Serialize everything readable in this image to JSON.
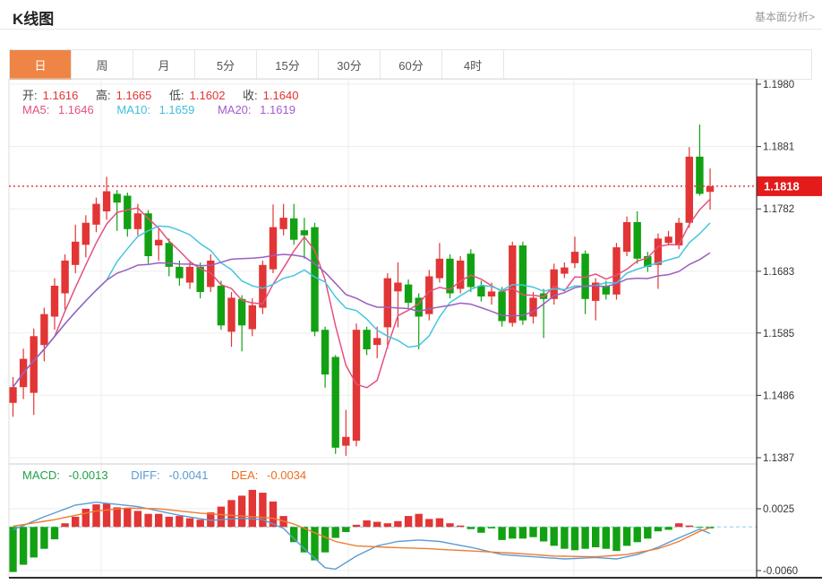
{
  "header": {
    "title": "K线图",
    "link": "基本面分析>"
  },
  "tabs": {
    "accent": "#ee8544",
    "items": [
      {
        "name": "tab-day",
        "label": "日",
        "active": true
      },
      {
        "name": "tab-week",
        "label": "周",
        "active": false
      },
      {
        "name": "tab-month",
        "label": "月",
        "active": false
      },
      {
        "name": "tab-5min",
        "label": "5分",
        "active": false
      },
      {
        "name": "tab-15min",
        "label": "15分",
        "active": false
      },
      {
        "name": "tab-30min",
        "label": "30分",
        "active": false
      },
      {
        "name": "tab-60min",
        "label": "60分",
        "active": false
      },
      {
        "name": "tab-4hour",
        "label": "4时",
        "active": false
      }
    ]
  },
  "legend": {
    "ohlc_value_color": "#e33232",
    "ohlc": [
      {
        "label": "开:",
        "value": "1.1616"
      },
      {
        "label": "高:",
        "value": "1.1665"
      },
      {
        "label": "低:",
        "value": "1.1602"
      },
      {
        "label": "收:",
        "value": "1.1640"
      }
    ],
    "ma": [
      {
        "label": "MA5:",
        "value": "1.1646",
        "color": "#e4517e"
      },
      {
        "label": "MA10:",
        "value": "1.1659",
        "color": "#3ec0dd"
      },
      {
        "label": "MA20:",
        "value": "1.1619",
        "color": "#a35cd0"
      }
    ]
  },
  "macd_legend": [
    {
      "label": "MACD:",
      "value": "-0.0013",
      "color": "#21a148"
    },
    {
      "label": "DIFF:",
      "value": "-0.0041",
      "color": "#5b9bd5"
    },
    {
      "label": "DEA:",
      "value": "-0.0034",
      "color": "#ed6d1f"
    }
  ],
  "chart_data": {
    "type": "candlestick+macd",
    "legend_position": "top-left-overlay",
    "grid": true,
    "price_axis": {
      "ticks": [
        1.198,
        1.1881,
        1.1782,
        1.1683,
        1.1585,
        1.1486,
        1.1387
      ],
      "last_price": 1.1818
    },
    "macd_axis": {
      "ticks": [
        0.0025,
        -0.006
      ],
      "zero_line": 0
    },
    "colors": {
      "up": "#e23535",
      "down": "#12a112",
      "ma5": "#e4517e",
      "ma10": "#45c5e0",
      "ma20": "#9a5fc0",
      "diff": "#5b9bd5",
      "dea": "#ed7d31",
      "last_price_line": "#e43c3c",
      "badge_bg": "#e31b1b",
      "badge_text": "#ffffff",
      "grid": "#ededed",
      "axis": "#333333",
      "zero_dash": "#86d2e4"
    },
    "ma_periods": [
      5,
      10,
      20
    ],
    "candles_ohlc": [
      [
        1.1474,
        1.1515,
        1.1452,
        1.1499
      ],
      [
        1.1499,
        1.156,
        1.148,
        1.1544
      ],
      [
        1.149,
        1.1592,
        1.1455,
        1.158
      ],
      [
        1.1566,
        1.1625,
        1.154,
        1.1615
      ],
      [
        1.1611,
        1.1672,
        1.159,
        1.166
      ],
      [
        1.1648,
        1.171,
        1.1622,
        1.17
      ],
      [
        1.1693,
        1.1757,
        1.168,
        1.173
      ],
      [
        1.1725,
        1.1772,
        1.1705,
        1.176
      ],
      [
        1.1757,
        1.18,
        1.1745,
        1.179
      ],
      [
        1.1778,
        1.1833,
        1.1765,
        1.181
      ],
      [
        1.1806,
        1.1812,
        1.1747,
        1.1792
      ],
      [
        1.1803,
        1.1808,
        1.1738,
        1.175
      ],
      [
        1.175,
        1.179,
        1.174,
        1.1775
      ],
      [
        1.1775,
        1.178,
        1.1695,
        1.1707
      ],
      [
        1.1724,
        1.175,
        1.17,
        1.1733
      ],
      [
        1.1728,
        1.1735,
        1.1675,
        1.169
      ],
      [
        1.169,
        1.17,
        1.166,
        1.1672
      ],
      [
        1.1665,
        1.17,
        1.1655,
        1.169
      ],
      [
        1.169,
        1.1697,
        1.164,
        1.165
      ],
      [
        1.1658,
        1.171,
        1.165,
        1.17
      ],
      [
        1.166,
        1.1668,
        1.159,
        1.1597
      ],
      [
        1.1587,
        1.165,
        1.1563,
        1.1641
      ],
      [
        1.1639,
        1.1645,
        1.1556,
        1.1597
      ],
      [
        1.1591,
        1.164,
        1.158,
        1.1629
      ],
      [
        1.1625,
        1.17,
        1.1615,
        1.1693
      ],
      [
        1.1686,
        1.1789,
        1.168,
        1.1753
      ],
      [
        1.175,
        1.179,
        1.174,
        1.1768
      ],
      [
        1.1767,
        1.179,
        1.1725,
        1.1733
      ],
      [
        1.1748,
        1.1768,
        1.1703,
        1.174
      ],
      [
        1.1753,
        1.176,
        1.158,
        1.1587
      ],
      [
        1.159,
        1.1595,
        1.1498,
        1.1519
      ],
      [
        1.1547,
        1.155,
        1.1393,
        1.1403
      ],
      [
        1.1406,
        1.1463,
        1.139,
        1.142
      ],
      [
        1.1414,
        1.16,
        1.1405,
        1.159
      ],
      [
        1.159,
        1.1595,
        1.155,
        1.1559
      ],
      [
        1.1566,
        1.1595,
        1.1545,
        1.1577
      ],
      [
        1.1594,
        1.168,
        1.156,
        1.1672
      ],
      [
        1.1651,
        1.1697,
        1.1594,
        1.1665
      ],
      [
        1.1662,
        1.167,
        1.1625,
        1.1633
      ],
      [
        1.1641,
        1.1648,
        1.1559,
        1.1611
      ],
      [
        1.1615,
        1.1685,
        1.1605,
        1.1675
      ],
      [
        1.1672,
        1.1728,
        1.1665,
        1.1703
      ],
      [
        1.1703,
        1.171,
        1.164,
        1.1648
      ],
      [
        1.1655,
        1.1707,
        1.1648,
        1.17
      ],
      [
        1.1711,
        1.1718,
        1.165,
        1.1658
      ],
      [
        1.166,
        1.1668,
        1.1635,
        1.1643
      ],
      [
        1.1643,
        1.1665,
        1.163,
        1.1651
      ],
      [
        1.1651,
        1.1658,
        1.1595,
        1.1604
      ],
      [
        1.1601,
        1.173,
        1.1595,
        1.1724
      ],
      [
        1.1724,
        1.173,
        1.1598,
        1.1605
      ],
      [
        1.1611,
        1.165,
        1.16,
        1.1641
      ],
      [
        1.1648,
        1.1655,
        1.1577,
        1.1639
      ],
      [
        1.1639,
        1.1695,
        1.163,
        1.1686
      ],
      [
        1.1679,
        1.1697,
        1.1672,
        1.1689
      ],
      [
        1.1696,
        1.1738,
        1.1688,
        1.1714
      ],
      [
        1.1711,
        1.1716,
        1.1615,
        1.1639
      ],
      [
        1.1636,
        1.1672,
        1.1605,
        1.1665
      ],
      [
        1.166,
        1.1668,
        1.1638,
        1.1646
      ],
      [
        1.1646,
        1.1728,
        1.1638,
        1.1721
      ],
      [
        1.1714,
        1.177,
        1.1707,
        1.1761
      ],
      [
        1.1761,
        1.1778,
        1.1695,
        1.1703
      ],
      [
        1.1707,
        1.1714,
        1.1682,
        1.169
      ],
      [
        1.1693,
        1.1743,
        1.1655,
        1.1735
      ],
      [
        1.1728,
        1.1747,
        1.1724,
        1.1738
      ],
      [
        1.1724,
        1.1768,
        1.1718,
        1.176
      ],
      [
        1.176,
        1.188,
        1.1752,
        1.1865
      ],
      [
        1.1865,
        1.1916,
        1.1803,
        1.1806
      ],
      [
        1.1809,
        1.1846,
        1.1781,
        1.1818
      ]
    ],
    "macd_hist": [
      -0.0062,
      -0.0052,
      -0.0042,
      -0.003,
      -0.0017,
      0.0005,
      0.0014,
      0.0025,
      0.0031,
      0.0032,
      0.0027,
      0.0025,
      0.0022,
      0.0018,
      0.0018,
      0.0014,
      0.0015,
      0.0012,
      0.001,
      0.002,
      0.0028,
      0.0037,
      0.0043,
      0.0051,
      0.0047,
      0.0035,
      0.0015,
      -0.0021,
      -0.0035,
      -0.0046,
      -0.0035,
      -0.0015,
      -0.0007,
      0.0003,
      0.0009,
      0.0007,
      0.0005,
      0.0008,
      0.0015,
      0.0018,
      0.0011,
      0.0012,
      0.0005,
      0.0002,
      -0.0003,
      -0.0008,
      -0.0002,
      -0.0018,
      -0.0016,
      -0.0016,
      -0.0014,
      -0.002,
      -0.0026,
      -0.003,
      -0.0032,
      -0.003,
      -0.0028,
      -0.003,
      -0.0033,
      -0.0026,
      -0.0021,
      -0.0016,
      -0.0006,
      -0.0004,
      0.0005,
      0.0002,
      -0.0001,
      -0.0002
    ],
    "diff_points": [
      [
        0,
        -0.0004
      ],
      [
        3,
        0.0014
      ],
      [
        6,
        0.003
      ],
      [
        8,
        0.0034
      ],
      [
        12,
        0.0028
      ],
      [
        16,
        0.0016
      ],
      [
        19,
        0.0009
      ],
      [
        22,
        0.0012
      ],
      [
        24,
        0.001
      ],
      [
        26,
        -0.0002
      ],
      [
        28,
        -0.003
      ],
      [
        30,
        -0.0056
      ],
      [
        31,
        -0.0058
      ],
      [
        33,
        -0.004
      ],
      [
        35,
        -0.0026
      ],
      [
        37,
        -0.002
      ],
      [
        39,
        -0.0018
      ],
      [
        41,
        -0.002
      ],
      [
        44,
        -0.0028
      ],
      [
        47,
        -0.0038
      ],
      [
        50,
        -0.0041
      ],
      [
        53,
        -0.0044
      ],
      [
        56,
        -0.0042
      ],
      [
        58,
        -0.0044
      ],
      [
        60,
        -0.0038
      ],
      [
        62,
        -0.0028
      ],
      [
        64,
        -0.0015
      ],
      [
        66,
        -0.0003
      ],
      [
        67,
        -0.0009
      ]
    ],
    "dea_points": [
      [
        0,
        0.0001
      ],
      [
        4,
        0.001
      ],
      [
        8,
        0.0022
      ],
      [
        11,
        0.0026
      ],
      [
        14,
        0.0025
      ],
      [
        18,
        0.0019
      ],
      [
        22,
        0.0015
      ],
      [
        25,
        0.0012
      ],
      [
        27,
        0.0004
      ],
      [
        29,
        -0.0008
      ],
      [
        31,
        -0.002
      ],
      [
        33,
        -0.0026
      ],
      [
        36,
        -0.0028
      ],
      [
        40,
        -0.003
      ],
      [
        44,
        -0.0033
      ],
      [
        48,
        -0.0036
      ],
      [
        52,
        -0.004
      ],
      [
        56,
        -0.0041
      ],
      [
        59,
        -0.0038
      ],
      [
        62,
        -0.003
      ],
      [
        64,
        -0.002
      ],
      [
        66,
        -0.0006
      ],
      [
        67,
        -0.0001
      ]
    ]
  }
}
